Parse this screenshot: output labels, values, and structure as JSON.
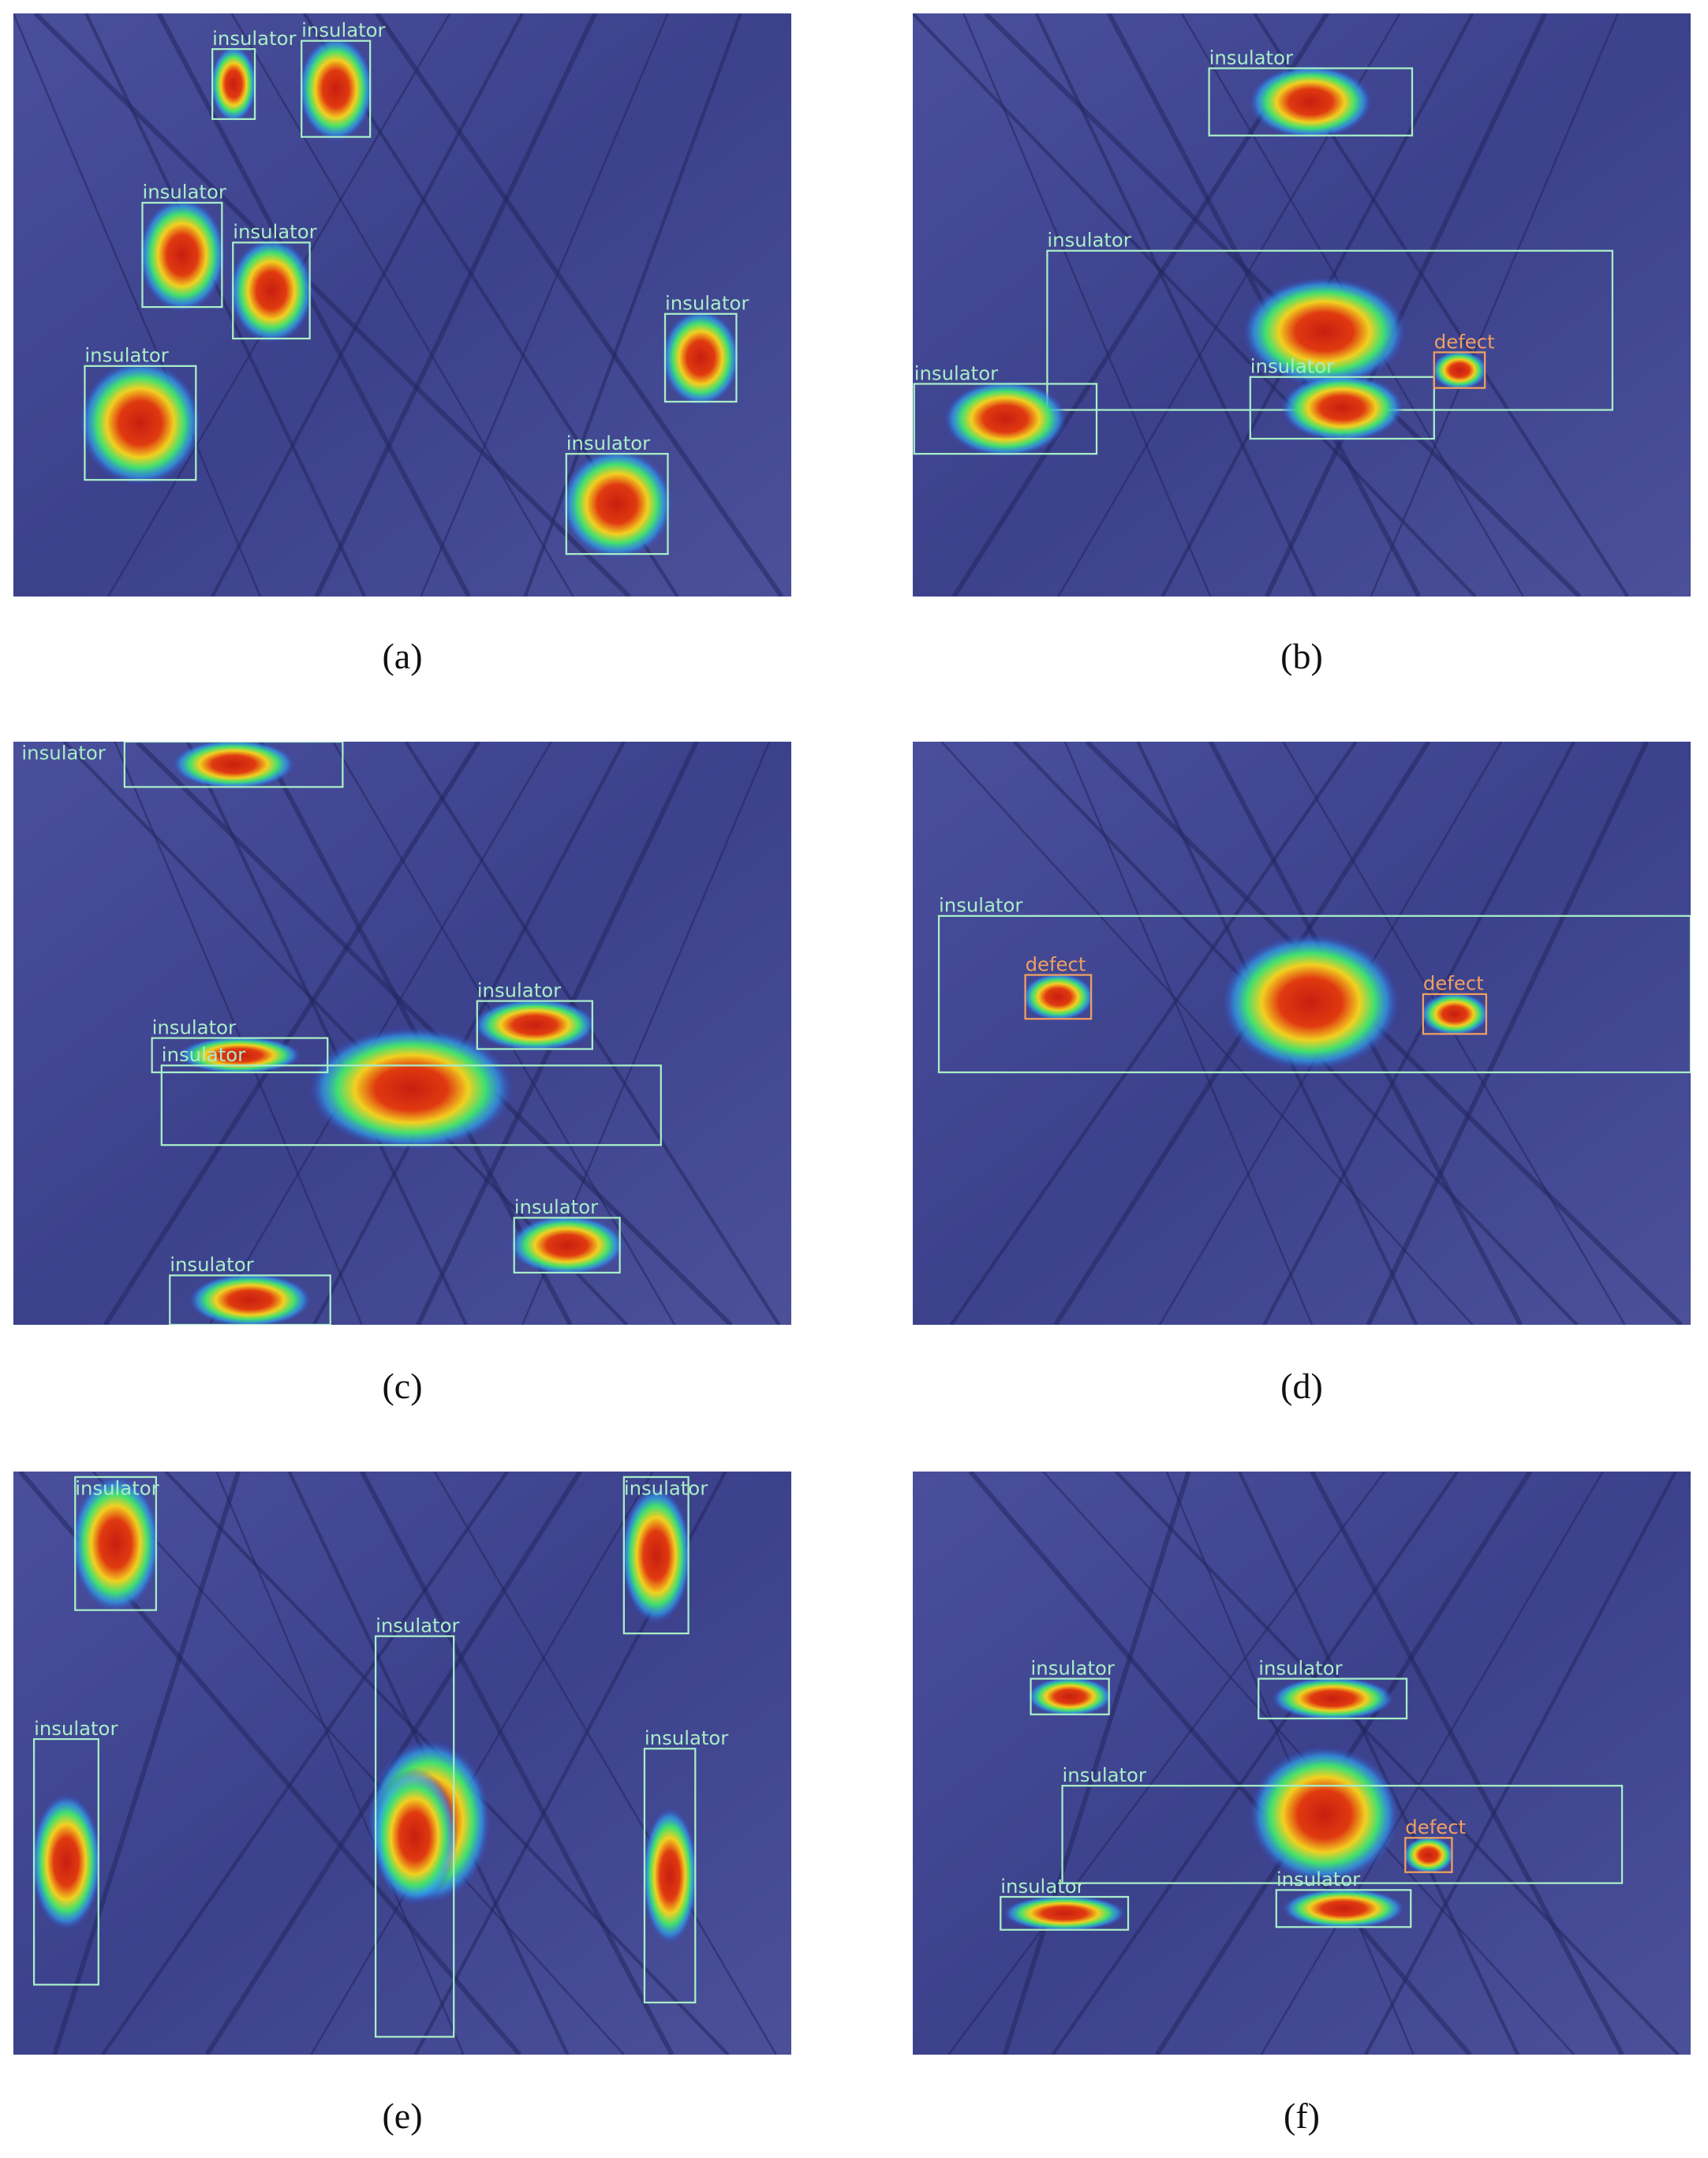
{
  "panels": [
    {
      "caption": "(a)",
      "detections": [
        {
          "label": "insulator"
        },
        {
          "label": "insulator"
        },
        {
          "label": "insulator"
        },
        {
          "label": "insulator"
        },
        {
          "label": "insulator"
        },
        {
          "label": "insulator"
        },
        {
          "label": "insulator"
        }
      ]
    },
    {
      "caption": "(b)",
      "detections": [
        {
          "label": "insulator"
        },
        {
          "label": "insulator"
        },
        {
          "label": "insulator"
        },
        {
          "label": "defect"
        },
        {
          "label": "insulator"
        }
      ]
    },
    {
      "caption": "(c)",
      "detections": [
        {
          "label": "insulator"
        },
        {
          "label": "insulator"
        },
        {
          "label": "insulator"
        },
        {
          "label": "insulator"
        },
        {
          "label": "insulator"
        },
        {
          "label": "insulator"
        }
      ]
    },
    {
      "caption": "(d)",
      "detections": [
        {
          "label": "insulator"
        },
        {
          "label": "defect"
        },
        {
          "label": "defect"
        }
      ]
    },
    {
      "caption": "(e)",
      "detections": [
        {
          "label": "insulator"
        },
        {
          "label": "insulator"
        },
        {
          "label": "insulator"
        },
        {
          "label": "insulator"
        },
        {
          "label": "insulator"
        }
      ]
    },
    {
      "caption": "(f)",
      "detections": [
        {
          "label": "insulator"
        },
        {
          "label": "insulator"
        },
        {
          "label": "insulator"
        },
        {
          "label": "defect"
        },
        {
          "label": "insulator"
        },
        {
          "label": "insulator"
        }
      ]
    }
  ]
}
